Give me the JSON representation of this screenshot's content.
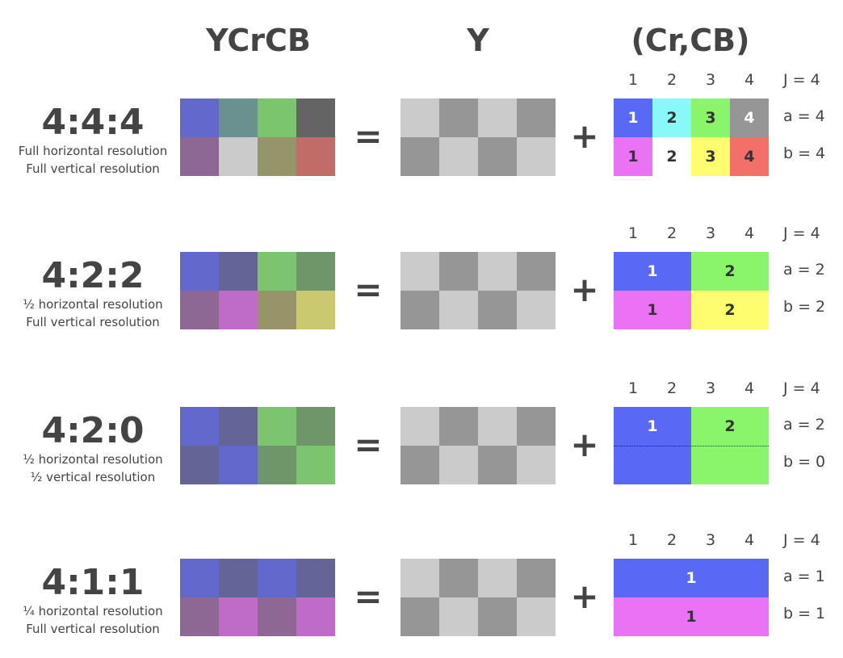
{
  "headers": {
    "ycrcb": "YCrCB",
    "y": "Y",
    "crcb": "(Cr,CB)"
  },
  "operators": {
    "equals": "=",
    "plus": "+"
  },
  "colors": {
    "ycrcb_blue": "#6369cc",
    "ycrcb_teal": "#6a9090",
    "ycrcb_green": "#7bc56e",
    "ycrcb_dgray": "#646464",
    "ycrcb_mauve": "#8e6895",
    "ycrcb_lgray": "#cbcbcb",
    "ycrcb_olive": "#96956a",
    "ycrcb_red": "#c26c68",
    "y_light": "#cbcbcb",
    "y_dark": "#969696",
    "chroma_blue": "#5a69f5",
    "chroma_cyan": "#88f8f8",
    "chroma_green": "#8af46a",
    "chroma_gray": "#969696",
    "chroma_magenta": "#ea73f5",
    "chroma_white": "#ffffff",
    "chroma_yellow": "#fdfd6f",
    "chroma_red": "#f27068"
  },
  "rows": [
    {
      "title": "4:4:4",
      "desc1": "Full horizontal resolution",
      "desc2": "Full vertical resolution",
      "ycrcb": [
        "#6369cc",
        "#6a9090",
        "#7bc56e",
        "#646464",
        "#8e6895",
        "#cbcbcb",
        "#96956a",
        "#c26c68"
      ],
      "y": [
        "#cbcbcb",
        "#969696",
        "#cbcbcb",
        "#969696",
        "#969696",
        "#cbcbcb",
        "#969696",
        "#cbcbcb"
      ],
      "cols": [
        "1",
        "2",
        "3",
        "4"
      ],
      "j": "J = 4",
      "a": "a = 4",
      "b": "b = 4",
      "chroma": [
        {
          "label": "1",
          "color": "#5a69f5",
          "text": "light"
        },
        {
          "label": "2",
          "color": "#88f8f8",
          "text": "dark"
        },
        {
          "label": "3",
          "color": "#8af46a",
          "text": "dark"
        },
        {
          "label": "4",
          "color": "#969696",
          "text": "light"
        },
        {
          "label": "1",
          "color": "#ea73f5",
          "text": "dark"
        },
        {
          "label": "2",
          "color": "#ffffff",
          "text": "dark"
        },
        {
          "label": "3",
          "color": "#fdfd6f",
          "text": "dark"
        },
        {
          "label": "4",
          "color": "#f27068",
          "text": "dark"
        }
      ]
    },
    {
      "title": "4:2:2",
      "desc1": "½ horizontal resolution",
      "desc2": "Full vertical resolution",
      "ycrcb": [
        "#6369cc",
        "#646496",
        "#7bc56e",
        "#6e966a",
        "#8e6895",
        "#bf6bc8",
        "#96956a",
        "#cbc96f"
      ],
      "y": [
        "#cbcbcb",
        "#969696",
        "#cbcbcb",
        "#969696",
        "#969696",
        "#cbcbcb",
        "#969696",
        "#cbcbcb"
      ],
      "cols": [
        "1",
        "2",
        "3",
        "4"
      ],
      "j": "J = 4",
      "a": "a = 2",
      "b": "b = 2",
      "chroma": [
        {
          "label": "1",
          "color": "#5a69f5",
          "text": "light"
        },
        {
          "label": "2",
          "color": "#8af46a",
          "text": "dark"
        },
        {
          "label": "1",
          "color": "#ea73f5",
          "text": "dark"
        },
        {
          "label": "2",
          "color": "#fdfd6f",
          "text": "dark"
        }
      ]
    },
    {
      "title": "4:2:0",
      "desc1": "½ horizontal resolution",
      "desc2": "½ vertical resolution",
      "ycrcb": [
        "#6369cc",
        "#646496",
        "#7bc56e",
        "#6e966a",
        "#646496",
        "#6369cc",
        "#6e966a",
        "#7bc56e"
      ],
      "y": [
        "#cbcbcb",
        "#969696",
        "#cbcbcb",
        "#969696",
        "#969696",
        "#cbcbcb",
        "#969696",
        "#cbcbcb"
      ],
      "cols": [
        "1",
        "2",
        "3",
        "4"
      ],
      "j": "J = 4",
      "a": "a = 2",
      "b": "b = 0",
      "chroma": [
        {
          "label": "1",
          "color": "#5a69f5",
          "text": "light"
        },
        {
          "label": "2",
          "color": "#8af46a",
          "text": "dark"
        }
      ]
    },
    {
      "title": "4:1:1",
      "desc1": "¼ horizontal resolution",
      "desc2": "Full vertical resolution",
      "ycrcb": [
        "#6369cc",
        "#646496",
        "#6369cc",
        "#646496",
        "#8e6895",
        "#bf6bc8",
        "#8e6895",
        "#bf6bc8"
      ],
      "y": [
        "#cbcbcb",
        "#969696",
        "#cbcbcb",
        "#969696",
        "#969696",
        "#cbcbcb",
        "#969696",
        "#cbcbcb"
      ],
      "cols": [
        "1",
        "2",
        "3",
        "4"
      ],
      "j": "J = 4",
      "a": "a = 1",
      "b": "b = 1",
      "chroma": [
        {
          "label": "1",
          "color": "#5a69f5",
          "text": "light"
        },
        {
          "label": "1",
          "color": "#ea73f5",
          "text": "dark"
        }
      ]
    }
  ]
}
